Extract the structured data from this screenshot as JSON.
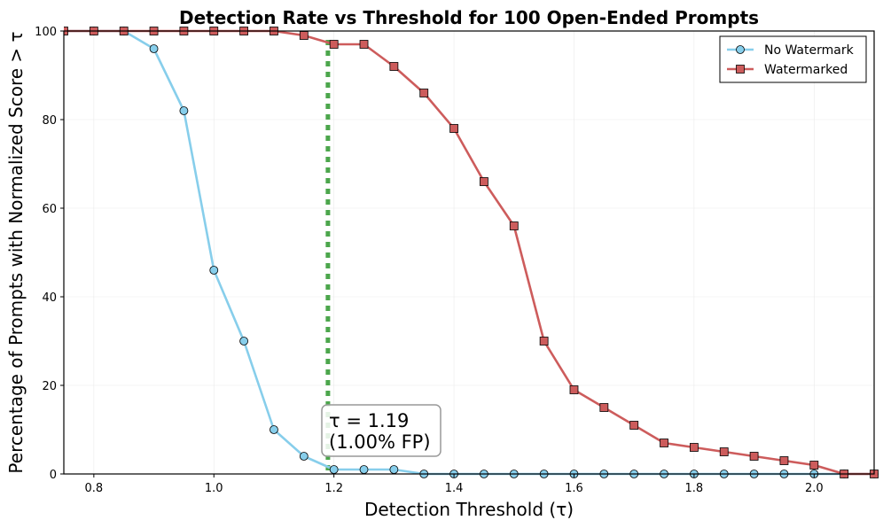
{
  "chart_data": {
    "type": "line",
    "title": "Detection Rate vs Threshold for 100 Open-Ended Prompts",
    "xlabel": "Detection Threshold (τ)",
    "ylabel": "Percentage of Prompts with Normalized Score > τ",
    "xlim": [
      0.75,
      2.1
    ],
    "ylim": [
      0,
      100
    ],
    "xticks": [
      0.8,
      1.0,
      1.2,
      1.4,
      1.6,
      1.8,
      2.0
    ],
    "xtick_labels": [
      "0.8",
      "1.0",
      "1.2",
      "1.4",
      "1.6",
      "1.8",
      "2.0"
    ],
    "yticks": [
      0,
      20,
      40,
      60,
      80,
      100
    ],
    "ytick_labels": [
      "0",
      "20",
      "40",
      "60",
      "80",
      "100"
    ],
    "grid": true,
    "legend_position": "top-right",
    "x": [
      0.75,
      0.8,
      0.85,
      0.9,
      0.95,
      1.0,
      1.05,
      1.1,
      1.15,
      1.2,
      1.25,
      1.3,
      1.35,
      1.4,
      1.45,
      1.5,
      1.55,
      1.6,
      1.65,
      1.7,
      1.75,
      1.8,
      1.85,
      1.9,
      1.95,
      2.0,
      2.05,
      2.1
    ],
    "series": [
      {
        "name": "No Watermark",
        "color": "#87CEEB",
        "marker": "circle",
        "values": [
          100,
          100,
          100,
          96,
          82,
          46,
          30,
          10,
          4,
          1,
          1,
          1,
          0,
          0,
          0,
          0,
          0,
          0,
          0,
          0,
          0,
          0,
          0,
          0,
          0,
          0,
          0,
          0
        ]
      },
      {
        "name": "Watermarked",
        "color": "#CD5C5C",
        "marker": "square",
        "values": [
          100,
          100,
          100,
          100,
          100,
          100,
          100,
          100,
          99,
          97,
          97,
          92,
          86,
          78,
          66,
          56,
          30,
          19,
          15,
          11,
          7,
          6,
          5,
          4,
          3,
          2,
          0,
          0
        ]
      }
    ],
    "threshold": {
      "value": 1.19,
      "color": "#4CA64C",
      "label_line1": "τ = 1.19",
      "label_line2": "(1.00% FP)"
    }
  }
}
